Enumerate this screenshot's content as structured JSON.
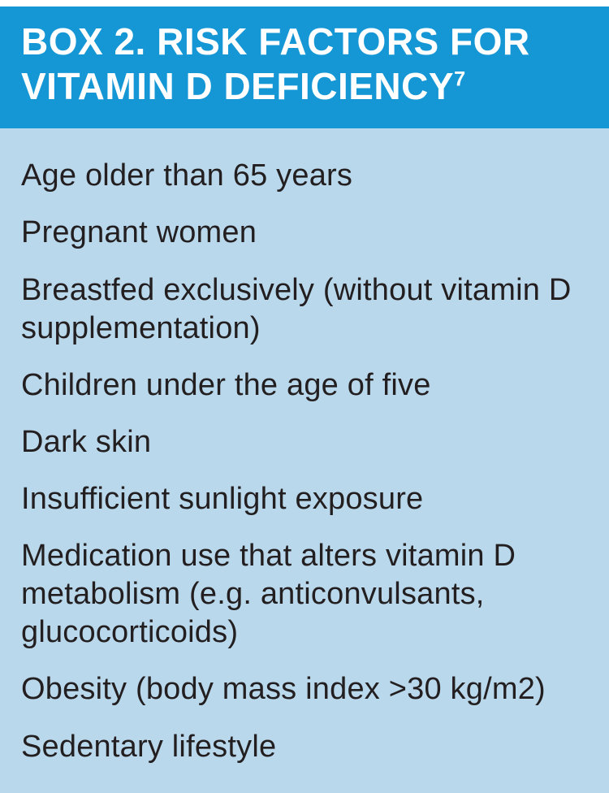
{
  "box": {
    "title": "BOX 2. RISK FACTORS FOR VITAMIN D DEFICIENCY",
    "title_superscript": "7",
    "items": [
      "Age older than 65 years",
      "Pregnant women",
      "Breastfed exclusively (without vitamin D supplementation)",
      "Children under the age of five",
      "Dark skin",
      "Insufficient sunlight exposure",
      "Medication use that alters vitamin D metabolism (e.g. anticonvulsants, glucocorticoids)",
      "Obesity (body mass index >30 kg/m2)",
      "Sedentary lifestyle"
    ],
    "colors": {
      "header_bg": "#1697d5",
      "header_text": "#ffffff",
      "body_bg": "#b9d8ec",
      "body_text": "#231f20"
    }
  }
}
